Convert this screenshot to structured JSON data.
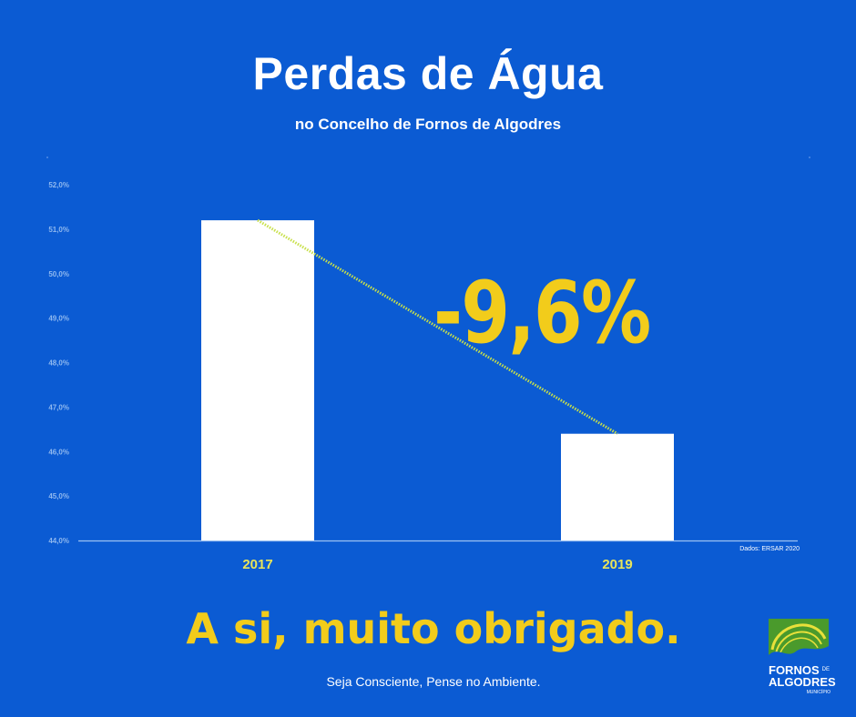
{
  "header": {
    "title": "Perdas de Água",
    "subtitle": "no Concelho de Fornos de Algodres"
  },
  "chart_data": {
    "type": "bar",
    "categories": [
      "2017",
      "2019"
    ],
    "values": [
      51.2,
      46.4
    ],
    "ylim": [
      44.0,
      52.0
    ],
    "yticks": [
      "44,0%",
      "45,0%",
      "46,0%",
      "47,0%",
      "48,0%",
      "49,0%",
      "50,0%",
      "51,0%",
      "52,0%"
    ],
    "trendline": true,
    "annotation": "-9,6%",
    "source": "Dados: ERSAR 2020",
    "colors": {
      "bar": "#ffffff",
      "trend": "#c8e04a",
      "tick_label": "#8fb8ef",
      "category_label": "#e8e45a",
      "annotation": "#f2cc1b"
    }
  },
  "footer": {
    "thanks": "A si, muito obrigado.",
    "tagline": "Seja Consciente, Pense no Ambiente."
  },
  "logo": {
    "line1": "FORNOS",
    "de": "DE",
    "line2": "ALGODRES",
    "line3": "MUNICÍPIO",
    "colors": {
      "green": "#4a9a2c",
      "yellow": "#e8e03a"
    }
  },
  "colors": {
    "background": "#0b5bd3",
    "accent": "#f2cc1b"
  }
}
